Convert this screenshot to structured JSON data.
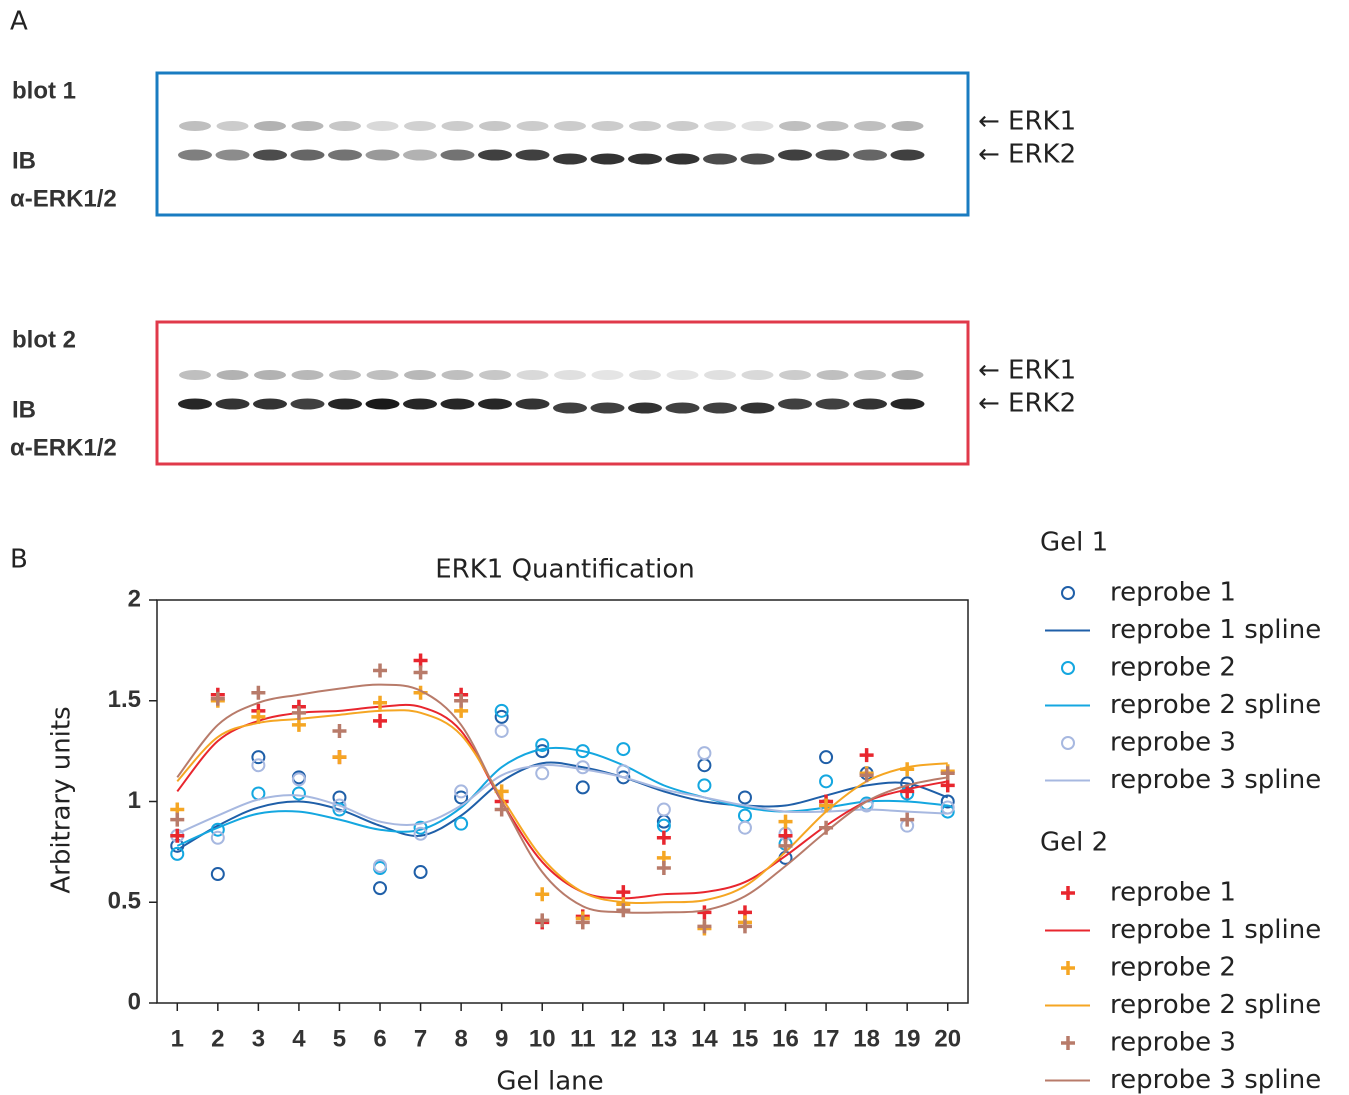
{
  "panel_a": {
    "label": "A",
    "blots": [
      {
        "title": "blot 1",
        "ib": "IB",
        "antibody": "α-ERK1/2",
        "band_upper": "← ERK1",
        "band_lower": "← ERK2"
      },
      {
        "title": "blot 2",
        "ib": "IB",
        "antibody": "α-ERK1/2",
        "band_upper": "← ERK1",
        "band_lower": "← ERK2"
      }
    ]
  },
  "panel_b": {
    "label": "B"
  },
  "chart_data": {
    "type": "scatter",
    "title": "ERK1 Quantification",
    "x_label": "Gel lane",
    "y_label": "Arbitrary units",
    "x": [
      1,
      2,
      3,
      4,
      5,
      6,
      7,
      8,
      9,
      10,
      11,
      12,
      13,
      14,
      15,
      16,
      17,
      18,
      19,
      20
    ],
    "xlim": [
      0.5,
      20.5
    ],
    "ylim": [
      0,
      2
    ],
    "xticks": [
      1,
      2,
      3,
      4,
      5,
      6,
      7,
      8,
      9,
      10,
      11,
      12,
      13,
      14,
      15,
      16,
      17,
      18,
      19,
      20
    ],
    "yticks": [
      0,
      0.5,
      1,
      1.5,
      2
    ],
    "groups": [
      {
        "title": "Gel 1",
        "series": [
          {
            "name": "reprobe 1",
            "marker": "circle",
            "color": "#1f5fa8",
            "values": [
              0.78,
              0.64,
              1.22,
              1.12,
              1.02,
              0.57,
              0.65,
              1.02,
              1.42,
              1.25,
              1.07,
              1.12,
              0.9,
              1.18,
              1.02,
              0.72,
              1.22,
              1.14,
              1.09,
              1.0
            ]
          },
          {
            "name": "reprobe 1 spline",
            "marker": "line",
            "color": "#1f5fa8",
            "values": [
              0.76,
              0.88,
              0.97,
              1.0,
              0.96,
              0.88,
              0.83,
              0.93,
              1.1,
              1.19,
              1.17,
              1.12,
              1.05,
              1.0,
              0.98,
              0.98,
              1.03,
              1.08,
              1.09,
              1.02
            ]
          },
          {
            "name": "reprobe 2",
            "marker": "circle",
            "color": "#14a7e0",
            "values": [
              0.74,
              0.86,
              1.04,
              1.04,
              0.96,
              0.67,
              0.87,
              0.89,
              1.45,
              1.28,
              1.25,
              1.26,
              0.88,
              1.08,
              0.93,
              0.79,
              1.1,
              0.99,
              1.04,
              0.95
            ]
          },
          {
            "name": "reprobe 2 spline",
            "marker": "line",
            "color": "#14a7e0",
            "values": [
              0.78,
              0.87,
              0.94,
              0.95,
              0.91,
              0.86,
              0.86,
              0.97,
              1.17,
              1.26,
              1.25,
              1.18,
              1.08,
              1.02,
              0.97,
              0.95,
              0.97,
              1.0,
              1.0,
              0.98
            ]
          },
          {
            "name": "reprobe 3",
            "marker": "circle",
            "color": "#a7b8e0",
            "values": [
              0.83,
              0.82,
              1.18,
              1.11,
              0.98,
              0.68,
              0.84,
              1.05,
              1.35,
              1.14,
              1.17,
              1.15,
              0.96,
              1.24,
              0.87,
              0.84,
              0.98,
              0.98,
              0.88,
              0.97
            ]
          },
          {
            "name": "reprobe 3 spline",
            "marker": "line",
            "color": "#a7b8e0",
            "values": [
              0.84,
              0.93,
              1.01,
              1.03,
              0.98,
              0.9,
              0.89,
              0.98,
              1.13,
              1.18,
              1.16,
              1.12,
              1.06,
              1.02,
              0.98,
              0.95,
              0.95,
              0.96,
              0.95,
              0.94
            ]
          }
        ]
      },
      {
        "title": "Gel 2",
        "series": [
          {
            "name": "reprobe 1",
            "marker": "plus",
            "color": "#e8262e",
            "values": [
              0.83,
              1.53,
              1.45,
              1.47,
              1.22,
              1.4,
              1.7,
              1.53,
              1.0,
              0.4,
              0.43,
              0.55,
              0.82,
              0.45,
              0.45,
              0.83,
              1.0,
              1.23,
              1.05,
              1.08
            ]
          },
          {
            "name": "reprobe 1 spline",
            "marker": "line",
            "color": "#e8262e",
            "values": [
              1.05,
              1.3,
              1.4,
              1.44,
              1.45,
              1.47,
              1.47,
              1.35,
              1.0,
              0.7,
              0.55,
              0.52,
              0.54,
              0.55,
              0.6,
              0.73,
              0.88,
              1.0,
              1.06,
              1.1
            ]
          },
          {
            "name": "reprobe 2",
            "marker": "plus",
            "color": "#f5a623",
            "values": [
              0.96,
              1.5,
              1.42,
              1.38,
              1.22,
              1.49,
              1.54,
              1.45,
              1.05,
              0.54,
              0.42,
              0.49,
              0.72,
              0.37,
              0.4,
              0.9,
              0.98,
              1.14,
              1.16,
              1.15
            ]
          },
          {
            "name": "reprobe 2 spline",
            "marker": "line",
            "color": "#f5a623",
            "values": [
              1.1,
              1.32,
              1.39,
              1.41,
              1.43,
              1.45,
              1.44,
              1.33,
              1.02,
              0.72,
              0.55,
              0.5,
              0.5,
              0.51,
              0.58,
              0.75,
              0.95,
              1.1,
              1.17,
              1.19
            ]
          },
          {
            "name": "reprobe 3",
            "marker": "plus",
            "color": "#b87b6a",
            "values": [
              0.91,
              1.51,
              1.54,
              1.44,
              1.35,
              1.65,
              1.64,
              1.5,
              0.96,
              0.41,
              0.4,
              0.46,
              0.67,
              0.38,
              0.38,
              0.78,
              0.87,
              1.13,
              0.91,
              1.14
            ]
          },
          {
            "name": "reprobe 3 spline",
            "marker": "line",
            "color": "#b87b6a",
            "values": [
              1.12,
              1.38,
              1.49,
              1.53,
              1.56,
              1.58,
              1.55,
              1.38,
              1.0,
              0.65,
              0.48,
              0.45,
              0.45,
              0.46,
              0.53,
              0.68,
              0.85,
              1.0,
              1.08,
              1.12
            ]
          }
        ]
      }
    ]
  }
}
